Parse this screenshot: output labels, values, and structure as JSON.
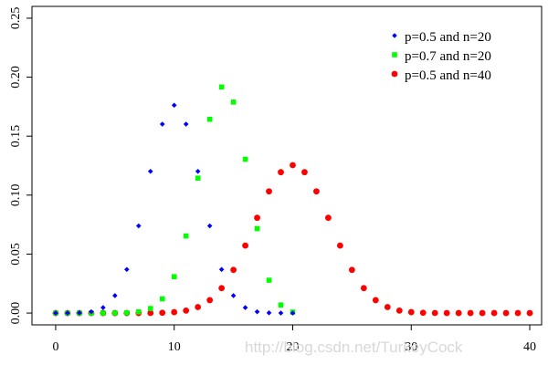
{
  "chart_data": {
    "type": "scatter",
    "xlim": [
      -2,
      41
    ],
    "ylim": [
      -0.01,
      0.26
    ],
    "xticks": [
      0,
      10,
      20,
      30,
      40
    ],
    "yticks": [
      0.0,
      0.05,
      0.1,
      0.15,
      0.2,
      0.25
    ],
    "ytick_labels": [
      "0.00",
      "0.05",
      "0.10",
      "0.15",
      "0.20",
      "0.25"
    ],
    "grid": false,
    "legend_position": "top-right",
    "series": [
      {
        "name": "p=0.5 and n=20",
        "color": "#0000ff",
        "marker": "diamond",
        "x": [
          0,
          1,
          2,
          3,
          4,
          5,
          6,
          7,
          8,
          9,
          10,
          11,
          12,
          13,
          14,
          15,
          16,
          17,
          18,
          19,
          20
        ],
        "y": [
          1e-06,
          1.9e-05,
          0.000181,
          0.001087,
          0.004621,
          0.014786,
          0.036964,
          0.073929,
          0.120134,
          0.160179,
          0.176197,
          0.160179,
          0.120134,
          0.073929,
          0.036964,
          0.014786,
          0.004621,
          0.001087,
          0.000181,
          1.9e-05,
          1e-06
        ]
      },
      {
        "name": "p=0.7 and n=20",
        "color": "#00ff00",
        "marker": "square",
        "x": [
          0,
          1,
          2,
          3,
          4,
          5,
          6,
          7,
          8,
          9,
          10,
          11,
          12,
          13,
          14,
          15,
          16,
          17,
          18,
          19,
          20
        ],
        "y": [
          0.0,
          0.0,
          0.0,
          0.0,
          5e-06,
          3.7e-05,
          0.000218,
          0.001018,
          0.003859,
          0.012007,
          0.030817,
          0.06537,
          0.114397,
          0.164262,
          0.191639,
          0.178863,
          0.130421,
          0.071604,
          0.027846,
          0.006839,
          0.000798
        ]
      },
      {
        "name": "p=0.5 and n=40",
        "color": "#ff0000",
        "marker": "circle",
        "x": [
          0,
          1,
          2,
          3,
          4,
          5,
          6,
          7,
          8,
          9,
          10,
          11,
          12,
          13,
          14,
          15,
          16,
          17,
          18,
          19,
          20,
          21,
          22,
          23,
          24,
          25,
          26,
          27,
          28,
          29,
          30,
          31,
          32,
          33,
          34,
          35,
          36,
          37,
          38,
          39,
          40
        ],
        "y": [
          0.0,
          0.0,
          0.0,
          0.0,
          0.0,
          0.0,
          3e-06,
          1.7e-05,
          7e-05,
          0.000249,
          0.000771,
          0.002104,
          0.005084,
          0.01095,
          0.021118,
          0.036605,
          0.057192,
          0.08074,
          0.103173,
          0.119438,
          0.125371,
          0.119438,
          0.103173,
          0.08074,
          0.057192,
          0.036605,
          0.021118,
          0.01095,
          0.005084,
          0.002104,
          0.000771,
          0.000249,
          7e-05,
          1.7e-05,
          3e-06,
          0.0,
          0.0,
          0.0,
          0.0,
          0.0,
          0.0
        ]
      }
    ]
  },
  "watermark": "http://blog.csdn.net/TurkeyCock"
}
